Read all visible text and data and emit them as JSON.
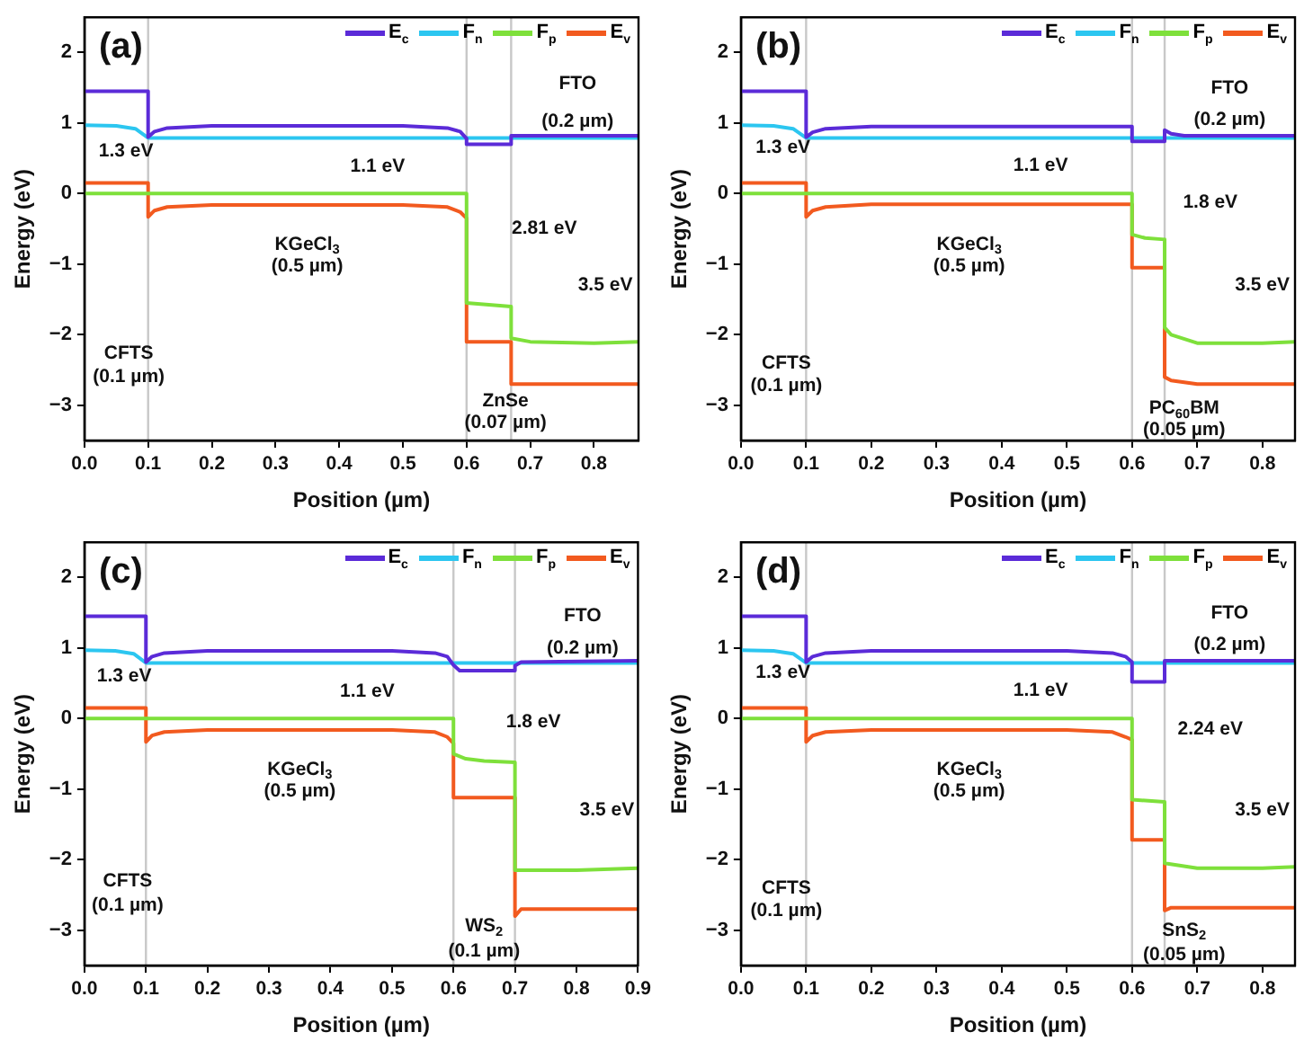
{
  "chart_data": [
    {
      "type": "line",
      "title": "(a)",
      "xlabel": "Position (µm)",
      "ylabel": "Energy (eV)",
      "legend": "top right",
      "marker": "none",
      "line_style": "solid",
      "xlim": [
        0,
        0.87
      ],
      "xticks": [
        {
          "value": 0,
          "label": "0.0"
        },
        {
          "value": 0.1,
          "label": "0.1"
        },
        {
          "value": 0.2,
          "label": "0.2"
        },
        {
          "value": 0.3,
          "label": "0.3"
        },
        {
          "value": 0.4,
          "label": "0.4"
        },
        {
          "value": 0.5,
          "label": "0.5"
        },
        {
          "value": 0.6,
          "label": "0.6"
        },
        {
          "value": 0.7,
          "label": "0.7"
        },
        {
          "value": 0.8,
          "label": "0.8"
        }
      ],
      "ylim": [
        -3.5,
        2.5
      ],
      "yticks": [
        {
          "value": -3,
          "label": "−3"
        },
        {
          "value": -2,
          "label": "−2"
        },
        {
          "value": -1,
          "label": "−1"
        },
        0,
        1,
        2
      ],
      "series": [
        {
          "name": "E$_{c}$",
          "color": "#5b2bd8",
          "x": [
            0,
            0.1,
            0.1,
            0.11,
            0.13,
            0.2,
            0.5,
            0.57,
            0.59,
            0.6,
            0.6,
            0.67,
            0.67,
            0.87
          ],
          "values": [
            1.45,
            1.45,
            0.8,
            0.88,
            0.93,
            0.96,
            0.96,
            0.93,
            0.88,
            0.78,
            0.7,
            0.7,
            0.82,
            0.82
          ]
        },
        {
          "name": "F$_{n}$",
          "color": "#2cc6f0",
          "x": [
            0,
            0.05,
            0.08,
            0.1,
            0.87
          ],
          "values": [
            0.97,
            0.96,
            0.92,
            0.79,
            0.79
          ]
        },
        {
          "name": "F$_{p}$",
          "color": "#7ee03b",
          "x": [
            0,
            0.6,
            0.6,
            0.67,
            0.67,
            0.7,
            0.8,
            0.87
          ],
          "values": [
            0,
            0,
            -1.55,
            -1.6,
            -2.05,
            -2.1,
            -2.12,
            -2.1
          ]
        },
        {
          "name": "E$_{v}$",
          "color": "#f25a1f",
          "x": [
            0,
            0.1,
            0.1,
            0.11,
            0.13,
            0.2,
            0.5,
            0.57,
            0.59,
            0.6,
            0.6,
            0.67,
            0.67,
            0.87
          ],
          "values": [
            0.15,
            0.15,
            -0.33,
            -0.24,
            -0.19,
            -0.16,
            -0.16,
            -0.19,
            -0.26,
            -0.35,
            -2.1,
            -2.1,
            -2.7,
            -2.7
          ]
        }
      ],
      "ref_lines": [
        {
          "axis": "x",
          "value": 0.1,
          "color": "#c8c8c8"
        },
        {
          "axis": "x",
          "value": 0.6,
          "color": "#c8c8c8"
        },
        {
          "axis": "x",
          "value": 0.67,
          "color": "#c8c8c8"
        }
      ],
      "annotations": [
        "1.3 eV",
        "1.1 eV",
        "KGeCl$_{3}$",
        "(0.5 µm)",
        "CFTS",
        "(0.1 µm)",
        "FTO",
        "(0.2 µm)",
        "2.81 eV",
        "3.5 eV",
        "ZnSe",
        "(0.07 µm)"
      ]
    },
    {
      "type": "line",
      "title": "(b)",
      "xlabel": "Position (µm)",
      "ylabel": "Energy (eV)",
      "legend": "top right",
      "marker": "none",
      "line_style": "solid",
      "xlim": [
        0,
        0.85
      ],
      "xticks": [
        {
          "value": 0,
          "label": "0.0"
        },
        {
          "value": 0.1,
          "label": "0.1"
        },
        {
          "value": 0.2,
          "label": "0.2"
        },
        {
          "value": 0.3,
          "label": "0.3"
        },
        {
          "value": 0.4,
          "label": "0.4"
        },
        {
          "value": 0.5,
          "label": "0.5"
        },
        {
          "value": 0.6,
          "label": "0.6"
        },
        {
          "value": 0.7,
          "label": "0.7"
        },
        {
          "value": 0.8,
          "label": "0.8"
        }
      ],
      "ylim": [
        -3.5,
        2.5
      ],
      "yticks": [
        {
          "value": -3,
          "label": "−3"
        },
        {
          "value": -2,
          "label": "−2"
        },
        {
          "value": -1,
          "label": "−1"
        },
        0,
        1,
        2
      ],
      "series": [
        {
          "name": "E$_{c}$",
          "color": "#5b2bd8",
          "x": [
            0,
            0.1,
            0.1,
            0.11,
            0.13,
            0.2,
            0.6,
            0.6,
            0.65,
            0.65,
            0.66,
            0.68,
            0.85
          ],
          "values": [
            1.45,
            1.45,
            0.8,
            0.87,
            0.92,
            0.95,
            0.95,
            0.74,
            0.74,
            0.9,
            0.85,
            0.82,
            0.82
          ]
        },
        {
          "name": "F$_{n}$",
          "color": "#2cc6f0",
          "x": [
            0,
            0.05,
            0.08,
            0.1,
            0.85
          ],
          "values": [
            0.97,
            0.96,
            0.92,
            0.79,
            0.79
          ]
        },
        {
          "name": "F$_{p}$",
          "color": "#7ee03b",
          "x": [
            0,
            0.6,
            0.6,
            0.62,
            0.65,
            0.65,
            0.66,
            0.7,
            0.8,
            0.85
          ],
          "values": [
            0,
            0,
            -0.58,
            -0.63,
            -0.65,
            -1.9,
            -2.0,
            -2.12,
            -2.12,
            -2.1
          ]
        },
        {
          "name": "E$_{v}$",
          "color": "#f25a1f",
          "x": [
            0,
            0.1,
            0.1,
            0.11,
            0.13,
            0.2,
            0.6,
            0.6,
            0.65,
            0.65,
            0.66,
            0.7,
            0.85
          ],
          "values": [
            0.15,
            0.15,
            -0.33,
            -0.24,
            -0.19,
            -0.15,
            -0.15,
            -1.05,
            -1.05,
            -2.6,
            -2.65,
            -2.7,
            -2.7
          ]
        }
      ],
      "ref_lines": [
        {
          "axis": "x",
          "value": 0.1,
          "color": "#c8c8c8"
        },
        {
          "axis": "x",
          "value": 0.6,
          "color": "#c8c8c8"
        },
        {
          "axis": "x",
          "value": 0.65,
          "color": "#c8c8c8"
        }
      ],
      "annotations": [
        "1.3 eV",
        "1.1 eV",
        "KGeCl$_{3}$",
        "(0.5 µm)",
        "CFTS",
        "(0.1 µm)",
        "FTO",
        "(0.2 µm)",
        "1.8 eV",
        "3.5 eV",
        "PC$_{60}$BM",
        "(0.05 µm)"
      ]
    },
    {
      "type": "line",
      "title": "(c)",
      "xlabel": "Position (µm)",
      "ylabel": "Energy (eV)",
      "legend": "top right",
      "marker": "none",
      "line_style": "solid",
      "xlim": [
        0,
        0.9
      ],
      "xticks": [
        {
          "value": 0,
          "label": "0.0"
        },
        {
          "value": 0.1,
          "label": "0.1"
        },
        {
          "value": 0.2,
          "label": "0.2"
        },
        {
          "value": 0.3,
          "label": "0.3"
        },
        {
          "value": 0.4,
          "label": "0.4"
        },
        {
          "value": 0.5,
          "label": "0.5"
        },
        {
          "value": 0.6,
          "label": "0.6"
        },
        {
          "value": 0.7,
          "label": "0.7"
        },
        {
          "value": 0.8,
          "label": "0.8"
        },
        {
          "value": 0.9,
          "label": "0.9"
        }
      ],
      "ylim": [
        -3.5,
        2.5
      ],
      "yticks": [
        {
          "value": -3,
          "label": "−3"
        },
        {
          "value": -2,
          "label": "−2"
        },
        {
          "value": -1,
          "label": "−1"
        },
        0,
        1,
        2
      ],
      "series": [
        {
          "name": "E$_{c}$",
          "color": "#5b2bd8",
          "x": [
            0,
            0.1,
            0.1,
            0.11,
            0.13,
            0.2,
            0.5,
            0.57,
            0.59,
            0.6,
            0.61,
            0.7,
            0.7,
            0.71,
            0.9
          ],
          "values": [
            1.45,
            1.45,
            0.8,
            0.88,
            0.93,
            0.96,
            0.96,
            0.93,
            0.88,
            0.76,
            0.68,
            0.68,
            0.75,
            0.8,
            0.82
          ]
        },
        {
          "name": "F$_{n}$",
          "color": "#2cc6f0",
          "x": [
            0,
            0.05,
            0.08,
            0.1,
            0.9
          ],
          "values": [
            0.97,
            0.96,
            0.92,
            0.79,
            0.79
          ]
        },
        {
          "name": "F$_{p}$",
          "color": "#7ee03b",
          "x": [
            0,
            0.6,
            0.6,
            0.62,
            0.65,
            0.7,
            0.7,
            0.8,
            0.9
          ],
          "values": [
            0,
            0,
            -0.5,
            -0.57,
            -0.6,
            -0.62,
            -2.15,
            -2.15,
            -2.12
          ]
        },
        {
          "name": "E$_{v}$",
          "color": "#f25a1f",
          "x": [
            0,
            0.1,
            0.1,
            0.11,
            0.13,
            0.2,
            0.5,
            0.57,
            0.59,
            0.6,
            0.6,
            0.7,
            0.7,
            0.71,
            0.9
          ],
          "values": [
            0.15,
            0.15,
            -0.33,
            -0.24,
            -0.19,
            -0.16,
            -0.16,
            -0.19,
            -0.26,
            -0.35,
            -1.12,
            -1.12,
            -2.8,
            -2.7,
            -2.7
          ]
        }
      ],
      "ref_lines": [
        {
          "axis": "x",
          "value": 0.1,
          "color": "#c8c8c8"
        },
        {
          "axis": "x",
          "value": 0.6,
          "color": "#c8c8c8"
        },
        {
          "axis": "x",
          "value": 0.7,
          "color": "#c8c8c8"
        }
      ],
      "annotations": [
        "1.3 eV",
        "1.1 eV",
        "KGeCl$_{3}$",
        "(0.5 µm)",
        "CFTS",
        "(0.1 µm)",
        "FTO",
        "(0.2 µm)",
        "1.8 eV",
        "3.5 eV",
        "WS$_{2}$",
        "(0.1 µm)"
      ]
    },
    {
      "type": "line",
      "title": "(d)",
      "xlabel": "Position (µm)",
      "ylabel": "Energy (eV)",
      "legend": "top right",
      "marker": "none",
      "line_style": "solid",
      "xlim": [
        0,
        0.85
      ],
      "xticks": [
        {
          "value": 0,
          "label": "0.0"
        },
        {
          "value": 0.1,
          "label": "0.1"
        },
        {
          "value": 0.2,
          "label": "0.2"
        },
        {
          "value": 0.3,
          "label": "0.3"
        },
        {
          "value": 0.4,
          "label": "0.4"
        },
        {
          "value": 0.5,
          "label": "0.5"
        },
        {
          "value": 0.6,
          "label": "0.6"
        },
        {
          "value": 0.7,
          "label": "0.7"
        },
        {
          "value": 0.8,
          "label": "0.8"
        }
      ],
      "ylim": [
        -3.5,
        2.5
      ],
      "yticks": [
        {
          "value": -3,
          "label": "−3"
        },
        {
          "value": -2,
          "label": "−2"
        },
        {
          "value": -1,
          "label": "−1"
        },
        0,
        1,
        2
      ],
      "series": [
        {
          "name": "E$_{c}$",
          "color": "#5b2bd8",
          "x": [
            0,
            0.1,
            0.1,
            0.11,
            0.13,
            0.2,
            0.5,
            0.57,
            0.59,
            0.6,
            0.6,
            0.65,
            0.65,
            0.85
          ],
          "values": [
            1.45,
            1.45,
            0.8,
            0.88,
            0.93,
            0.96,
            0.96,
            0.93,
            0.88,
            0.8,
            0.52,
            0.52,
            0.82,
            0.82
          ]
        },
        {
          "name": "F$_{n}$",
          "color": "#2cc6f0",
          "x": [
            0,
            0.05,
            0.08,
            0.1,
            0.85
          ],
          "values": [
            0.97,
            0.96,
            0.92,
            0.79,
            0.79
          ]
        },
        {
          "name": "F$_{p}$",
          "color": "#7ee03b",
          "x": [
            0,
            0.6,
            0.6,
            0.65,
            0.65,
            0.7,
            0.8,
            0.85
          ],
          "values": [
            0,
            0,
            -1.15,
            -1.18,
            -2.05,
            -2.12,
            -2.12,
            -2.1
          ]
        },
        {
          "name": "E$_{v}$",
          "color": "#f25a1f",
          "x": [
            0,
            0.1,
            0.1,
            0.11,
            0.13,
            0.2,
            0.5,
            0.57,
            0.59,
            0.6,
            0.6,
            0.65,
            0.65,
            0.66,
            0.85
          ],
          "values": [
            0.15,
            0.15,
            -0.33,
            -0.24,
            -0.19,
            -0.16,
            -0.16,
            -0.19,
            -0.26,
            -0.3,
            -1.72,
            -1.72,
            -2.72,
            -2.68,
            -2.68
          ]
        }
      ],
      "ref_lines": [
        {
          "axis": "x",
          "value": 0.1,
          "color": "#c8c8c8"
        },
        {
          "axis": "x",
          "value": 0.6,
          "color": "#c8c8c8"
        },
        {
          "axis": "x",
          "value": 0.65,
          "color": "#c8c8c8"
        }
      ],
      "annotations": [
        "1.3 eV",
        "1.1 eV",
        "KGeCl$_{3}$",
        "(0.5 µm)",
        "CFTS",
        "(0.1 µm)",
        "FTO",
        "(0.2 µm)",
        "2.24 eV",
        "3.5 eV",
        "SnS$_{2}$",
        "(0.05 µm)"
      ]
    }
  ]
}
